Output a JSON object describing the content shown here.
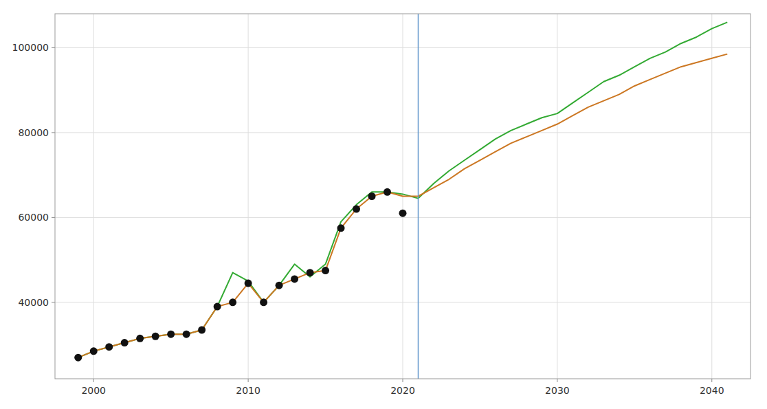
{
  "chart_data": {
    "type": "line",
    "xlim": [
      1997.5,
      2042.5
    ],
    "ylim": [
      22000,
      108000
    ],
    "xticks": [
      2000,
      2010,
      2020,
      2030,
      2040
    ],
    "yticks": [
      40000,
      60000,
      80000,
      100000
    ],
    "grid": true,
    "reference_lines": [
      {
        "x": 2021.0,
        "color": "#6699cc"
      }
    ],
    "series": [
      {
        "type": "line",
        "color": "#33aa33",
        "x": [
          1999,
          2000,
          2001,
          2002,
          2003,
          2004,
          2005,
          2006,
          2007,
          2008,
          2009,
          2010,
          2011,
          2012,
          2013,
          2014,
          2015,
          2016,
          2017,
          2018,
          2019,
          2020,
          2021,
          2022,
          2023,
          2024,
          2025,
          2026,
          2027,
          2028,
          2029,
          2030,
          2031,
          2032,
          2033,
          2034,
          2035,
          2036,
          2037,
          2038,
          2039,
          2040,
          2041
        ],
        "values": [
          27000,
          28500,
          29500,
          30500,
          31500,
          32000,
          32500,
          32500,
          33500,
          39000,
          47000,
          45000,
          40000,
          44000,
          49000,
          46000,
          49000,
          59000,
          63000,
          66000,
          66000,
          65500,
          64500,
          68000,
          71000,
          73500,
          76000,
          78500,
          80500,
          82000,
          83500,
          84500,
          87000,
          89500,
          92000,
          93500,
          95500,
          97500,
          99000,
          101000,
          102500,
          104500,
          106000
        ]
      },
      {
        "type": "line",
        "color": "#cc7722",
        "x": [
          1999,
          2000,
          2001,
          2002,
          2003,
          2004,
          2005,
          2006,
          2007,
          2008,
          2009,
          2010,
          2011,
          2012,
          2013,
          2014,
          2015,
          2016,
          2017,
          2018,
          2019,
          2020,
          2021,
          2022,
          2023,
          2024,
          2025,
          2026,
          2027,
          2028,
          2029,
          2030,
          2031,
          2032,
          2033,
          2034,
          2035,
          2036,
          2037,
          2038,
          2039,
          2040,
          2041
        ],
        "values": [
          27000,
          28500,
          29500,
          30500,
          31500,
          32000,
          32500,
          32500,
          33500,
          39000,
          40000,
          44500,
          40000,
          44000,
          45500,
          47000,
          47500,
          57500,
          62000,
          65000,
          66000,
          65000,
          65000,
          67000,
          69000,
          71500,
          73500,
          75500,
          77500,
          79000,
          80500,
          82000,
          84000,
          86000,
          87500,
          89000,
          91000,
          92500,
          94000,
          95500,
          96500,
          97500,
          98500
        ]
      },
      {
        "type": "scatter",
        "color": "#111111",
        "x": [
          1999,
          2000,
          2001,
          2002,
          2003,
          2004,
          2005,
          2006,
          2007,
          2008,
          2009,
          2010,
          2011,
          2012,
          2013,
          2014,
          2015,
          2016,
          2017,
          2018,
          2019,
          2020
        ],
        "values": [
          27000,
          28500,
          29500,
          30500,
          31500,
          32000,
          32500,
          32500,
          33500,
          39000,
          40000,
          44500,
          40000,
          44000,
          45500,
          47000,
          47500,
          57500,
          62000,
          65000,
          66000,
          61000
        ]
      }
    ]
  }
}
